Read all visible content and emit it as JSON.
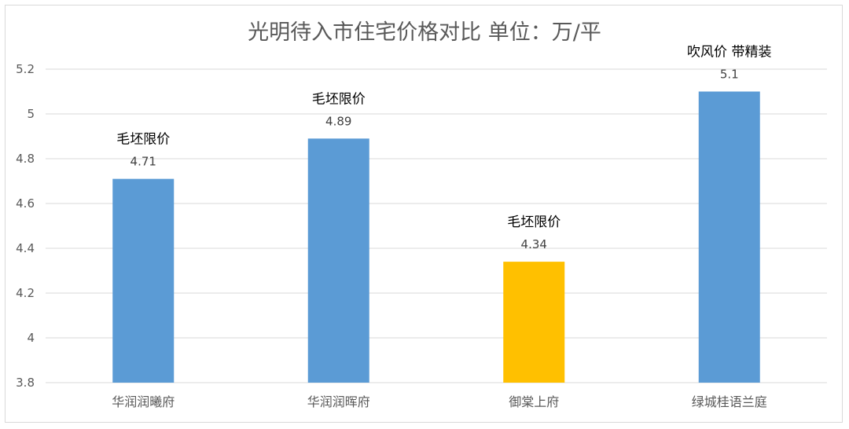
{
  "chart_data": {
    "type": "bar",
    "title": "光明待入市住宅价格对比  单位：万/平",
    "xlabel": "",
    "ylabel": "",
    "ylim": [
      3.8,
      5.2
    ],
    "yticks": [
      3.8,
      4,
      4.2,
      4.4,
      4.6,
      4.8,
      5,
      5.2
    ],
    "ytick_labels": [
      "3.8",
      "4",
      "4.2",
      "4.4",
      "4.6",
      "4.8",
      "5",
      "5.2"
    ],
    "grid": true,
    "legend": "none",
    "categories": [
      "华润润曦府",
      "华润润晖府",
      "御棠上府",
      "绿城桂语兰庭"
    ],
    "values": [
      4.71,
      4.89,
      4.34,
      5.1
    ],
    "value_labels": [
      "4.71",
      "4.89",
      "4.34",
      "5.1"
    ],
    "annotations": [
      "毛坯限价",
      "毛坯限价",
      "毛坯限价",
      "吹风价 带精装"
    ],
    "bar_colors": [
      "#5B9BD5",
      "#5B9BD5",
      "#FFC000",
      "#5B9BD5"
    ]
  }
}
